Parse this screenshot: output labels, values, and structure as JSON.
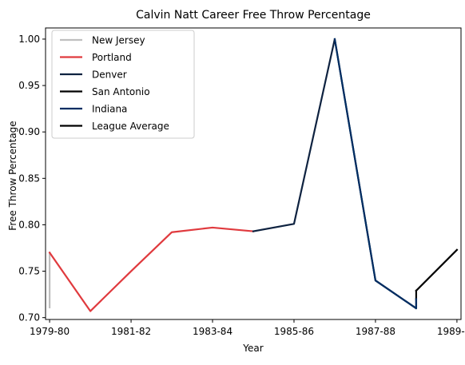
{
  "chart_data": {
    "type": "line",
    "title": "Calvin Natt Career Free Throw Percentage",
    "xlabel": "Year",
    "ylabel": "Free Throw Percentage",
    "x_tick_labels": [
      "1979-80",
      "1981-82",
      "1983-84",
      "1985-86",
      "1987-88",
      "1989-90"
    ],
    "x_tick_positions": [
      1979,
      1981,
      1983,
      1985,
      1987,
      1989
    ],
    "xlim": [
      1978.9,
      1989.1
    ],
    "ylim": [
      0.698,
      1.012
    ],
    "y_ticks": [
      0.7,
      0.75,
      0.8,
      0.85,
      0.9,
      0.95,
      1.0
    ],
    "y_tick_labels": [
      "0.70",
      "0.75",
      "0.80",
      "0.85",
      "0.90",
      "0.95",
      "1.00"
    ],
    "grid": false,
    "legend_position": "top-left",
    "series": [
      {
        "name": "New Jersey",
        "color": "#bfbfbf",
        "points": [
          [
            1979,
            0.711
          ],
          [
            1979,
            0.77
          ]
        ]
      },
      {
        "name": "Portland",
        "color": "#e03a3e",
        "points": [
          [
            1979,
            0.77
          ],
          [
            1980,
            0.707
          ],
          [
            1981,
            0.75
          ],
          [
            1982,
            0.792
          ],
          [
            1983,
            0.797
          ],
          [
            1984,
            0.793
          ]
        ]
      },
      {
        "name": "Denver",
        "color": "#0e2240",
        "points": [
          [
            1984,
            0.793
          ],
          [
            1985,
            0.801
          ],
          [
            1986,
            1.0
          ],
          [
            1987,
            0.74
          ],
          [
            1988,
            0.71
          ],
          [
            1988,
            0.72
          ]
        ]
      },
      {
        "name": "San Antonio",
        "color": "#000000",
        "points": [
          [
            1988,
            0.72
          ],
          [
            1988,
            0.729
          ]
        ]
      },
      {
        "name": "Indiana",
        "color": "#002d62",
        "points": [
          [
            1986,
            1.0
          ],
          [
            1987,
            0.74
          ],
          [
            1988,
            0.71
          ],
          [
            1988,
            0.72
          ]
        ]
      },
      {
        "name": "League Average",
        "color": "#000000",
        "points": [
          [
            1988,
            0.729
          ],
          [
            1989,
            0.773
          ]
        ]
      }
    ]
  }
}
